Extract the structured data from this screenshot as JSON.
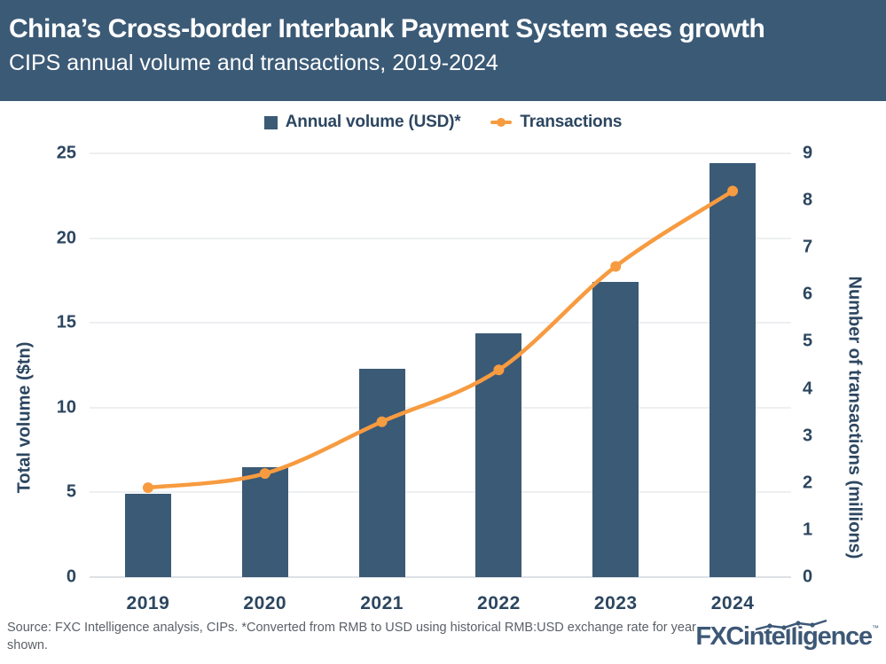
{
  "header": {
    "title": "China’s Cross-border Interbank Payment System sees growth",
    "subtitle": "CIPS annual volume and transactions, 2019-2024"
  },
  "chart_data": {
    "type": "bar+line combo",
    "categories": [
      "2019",
      "2020",
      "2021",
      "2022",
      "2023",
      "2024"
    ],
    "series": [
      {
        "name": "Annual volume (USD)*",
        "type": "bar",
        "axis": "left",
        "values": [
          4.9,
          6.5,
          12.3,
          14.4,
          17.4,
          24.4
        ],
        "color": "#3B5A76"
      },
      {
        "name": "Transactions",
        "type": "line",
        "axis": "right",
        "values": [
          1.9,
          2.2,
          3.3,
          4.4,
          6.6,
          8.2
        ],
        "color": "#F79B40"
      }
    ],
    "left_axis": {
      "label": "Total volume ($tn)",
      "min": 0,
      "max": 25,
      "ticks": [
        0,
        5,
        10,
        15,
        20,
        25
      ]
    },
    "right_axis": {
      "label": "Number of transactions (millions)",
      "min": 0,
      "max": 9,
      "ticks": [
        0,
        1,
        2,
        3,
        4,
        5,
        6,
        7,
        8,
        9
      ]
    },
    "grid": true,
    "legend_position": "top"
  },
  "footer": {
    "source": "Source: FXC Intelligence analysis, CIPs. *Converted from RMB to USD using historical RMB:USD exchange rate for year shown.",
    "logo": {
      "bold": "FXC",
      "rest": "intelligence",
      "tm": "™"
    }
  },
  "colors": {
    "header_background": "#3B5A76",
    "bar": "#3B5A76",
    "line": "#F79B40",
    "text_navy": "#2C4660",
    "grid": "#EDEFF1",
    "baseline": "#DDE1E5",
    "source_text": "#5B6168",
    "logo_navy": "#3D5876",
    "background": "#FFFFFF"
  }
}
